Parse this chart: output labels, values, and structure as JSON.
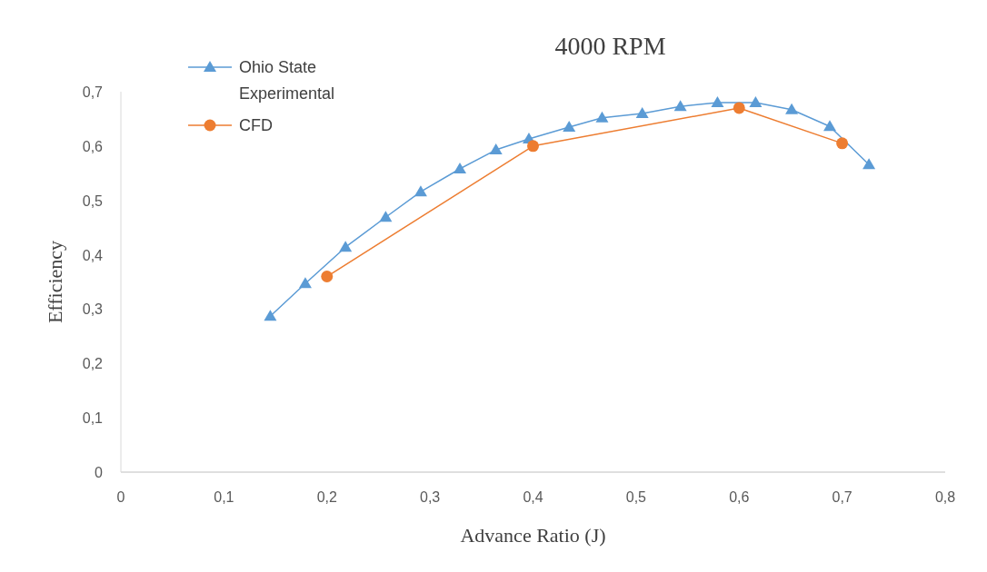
{
  "chart_data": {
    "type": "line",
    "title": "4000 RPM",
    "xlabel": "Advance Ratio (J)",
    "ylabel": "Efficiency",
    "xlim": [
      0,
      0.8
    ],
    "xticks": [
      0,
      {
        "value": 0.1,
        "label": "0,1"
      },
      {
        "value": 0.2,
        "label": "0,2"
      },
      {
        "value": 0.3,
        "label": "0,3"
      },
      {
        "value": 0.4,
        "label": "0,4"
      },
      {
        "value": 0.5,
        "label": "0,5"
      },
      {
        "value": 0.6,
        "label": "0,6"
      },
      {
        "value": 0.7,
        "label": "0,7"
      },
      {
        "value": 0.8,
        "label": "0,8"
      }
    ],
    "ylim": [
      0,
      0.7
    ],
    "yticks": [
      0,
      {
        "value": 0.1,
        "label": "0,1"
      },
      {
        "value": 0.2,
        "label": "0,2"
      },
      {
        "value": 0.3,
        "label": "0,3"
      },
      {
        "value": 0.4,
        "label": "0,4"
      },
      {
        "value": 0.5,
        "label": "0,5"
      },
      {
        "value": 0.6,
        "label": "0,6"
      },
      {
        "value": 0.7,
        "label": "0,7"
      }
    ],
    "grid": false,
    "legend": "top left",
    "line_style": "solid",
    "series": [
      {
        "name": "Ohio State Experimental",
        "color": "#5b9bd5",
        "marker": "triangle",
        "x": [
          0.145,
          0.179,
          0.218,
          0.257,
          0.291,
          0.329,
          0.364,
          0.396,
          0.435,
          0.467,
          0.506,
          0.543,
          0.579,
          0.616,
          0.651,
          0.688,
          0.726
        ],
        "values": [
          0.287,
          0.347,
          0.414,
          0.469,
          0.516,
          0.558,
          0.593,
          0.613,
          0.635,
          0.652,
          0.66,
          0.673,
          0.68,
          0.68,
          0.667,
          0.636,
          0.566
        ]
      },
      {
        "name": "CFD",
        "color": "#ed7d31",
        "marker": "circle",
        "x": [
          0.2,
          0.4,
          0.6,
          0.7
        ],
        "values": [
          0.36,
          0.6,
          0.67,
          0.605
        ]
      }
    ]
  }
}
